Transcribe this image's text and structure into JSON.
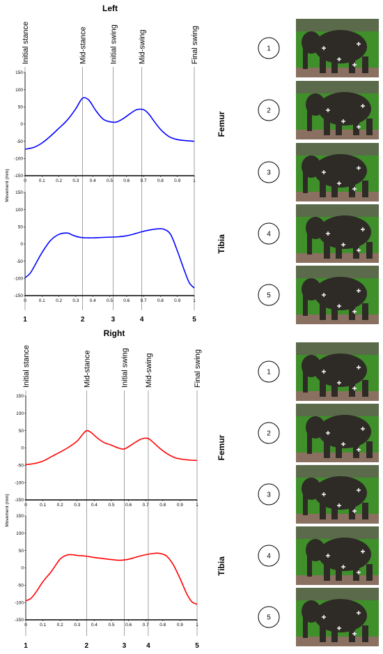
{
  "chart_data": [
    {
      "panel": "Left",
      "title": "Left",
      "phases": [
        {
          "label": "Initial stance",
          "x": 0
        },
        {
          "label": "Mid-stance",
          "x": 0.34
        },
        {
          "label": "Initial swing",
          "x": 0.52
        },
        {
          "label": "Mid-swing",
          "x": 0.69
        },
        {
          "label": "Final swing",
          "x": 1.0
        }
      ],
      "markers": [
        {
          "label": "1",
          "x": 0
        },
        {
          "label": "2",
          "x": 0.34
        },
        {
          "label": "3",
          "x": 0.52
        },
        {
          "label": "4",
          "x": 0.69
        },
        {
          "label": "5",
          "x": 1.0
        }
      ],
      "subplots": [
        {
          "type": "line",
          "name": "Femur",
          "color": "#0000ff",
          "ylabel": "",
          "xlim": [
            0,
            1
          ],
          "ylim": [
            -150,
            150
          ],
          "yticks": [
            -150,
            -100,
            -50,
            0,
            50,
            100,
            150
          ],
          "xticks": [
            "0",
            "0.1",
            "0.2",
            "0.3",
            "0.4",
            "0.5",
            "0.6",
            "0.7",
            "0.8",
            "0.9",
            "1"
          ],
          "x": [
            0,
            0.05,
            0.1,
            0.15,
            0.2,
            0.25,
            0.3,
            0.33,
            0.35,
            0.38,
            0.42,
            0.46,
            0.5,
            0.54,
            0.58,
            0.62,
            0.66,
            0.7,
            0.73,
            0.76,
            0.8,
            0.85,
            0.9,
            0.95,
            1.0
          ],
          "y": [
            -73,
            -68,
            -55,
            -35,
            -12,
            12,
            45,
            70,
            77,
            68,
            38,
            15,
            7,
            6,
            16,
            30,
            42,
            42,
            30,
            10,
            -15,
            -36,
            -45,
            -48,
            -50
          ]
        },
        {
          "type": "line",
          "name": "Tibia",
          "color": "#0000ff",
          "ylabel": "Movement (mm)",
          "xlim": [
            0,
            1
          ],
          "ylim": [
            -150,
            150
          ],
          "yticks": [
            -150,
            -100,
            -50,
            0,
            50,
            100,
            150
          ],
          "xticks": [
            "0",
            "0.1",
            "0.2",
            "0.3",
            "0.4",
            "0.5",
            "0.6",
            "0.7",
            "0.8",
            "0.9",
            "1"
          ],
          "x": [
            0,
            0.03,
            0.06,
            0.1,
            0.15,
            0.2,
            0.25,
            0.28,
            0.32,
            0.36,
            0.4,
            0.45,
            0.5,
            0.55,
            0.6,
            0.65,
            0.7,
            0.75,
            0.78,
            0.82,
            0.86,
            0.9,
            0.94,
            0.97,
            1.0
          ],
          "y": [
            -98,
            -85,
            -60,
            -25,
            10,
            28,
            32,
            26,
            20,
            18,
            18,
            19,
            20,
            21,
            24,
            30,
            37,
            42,
            44,
            43,
            28,
            -20,
            -75,
            -112,
            -128
          ]
        }
      ]
    },
    {
      "panel": "Right",
      "title": "Right",
      "phases": [
        {
          "label": "Initial stance",
          "x": 0
        },
        {
          "label": "Mid-stance",
          "x": 0.355
        },
        {
          "label": "Initial swing",
          "x": 0.575
        },
        {
          "label": "Mid-swing",
          "x": 0.715
        },
        {
          "label": "Final swing",
          "x": 1.0
        }
      ],
      "markers": [
        {
          "label": "1",
          "x": 0
        },
        {
          "label": "2",
          "x": 0.355
        },
        {
          "label": "3",
          "x": 0.575
        },
        {
          "label": "4",
          "x": 0.715
        },
        {
          "label": "5",
          "x": 1.0
        }
      ],
      "subplots": [
        {
          "type": "line",
          "name": "Femur",
          "color": "#ff0000",
          "ylabel": "",
          "xlim": [
            0,
            1
          ],
          "ylim": [
            -150,
            150
          ],
          "yticks": [
            -150,
            -100,
            -50,
            0,
            50,
            100,
            150
          ],
          "xticks": [
            "0",
            "0.1",
            "0.2",
            "0.3",
            "0.4",
            "0.5",
            "0.6",
            "0.7",
            "0.8",
            "0.9",
            "1"
          ],
          "x": [
            0,
            0.05,
            0.1,
            0.15,
            0.2,
            0.25,
            0.3,
            0.33,
            0.355,
            0.38,
            0.42,
            0.46,
            0.5,
            0.54,
            0.575,
            0.62,
            0.67,
            0.71,
            0.74,
            0.78,
            0.82,
            0.87,
            0.92,
            0.96,
            1.0
          ],
          "y": [
            -48,
            -45,
            -38,
            -25,
            -12,
            2,
            20,
            38,
            50,
            45,
            28,
            15,
            8,
            0,
            -3,
            10,
            25,
            28,
            18,
            0,
            -15,
            -28,
            -33,
            -35,
            -36
          ]
        },
        {
          "type": "line",
          "name": "Tibia",
          "color": "#ff0000",
          "ylabel": "Movement (mm)",
          "xlim": [
            0,
            1
          ],
          "ylim": [
            -150,
            150
          ],
          "yticks": [
            -150,
            -100,
            -50,
            0,
            50,
            100,
            150
          ],
          "xticks": [
            "0",
            "0.1",
            "0.2",
            "0.3",
            "0.4",
            "0.5",
            "0.6",
            "0.7",
            "0.8",
            "0.9",
            "1"
          ],
          "x": [
            0,
            0.03,
            0.06,
            0.1,
            0.15,
            0.2,
            0.24,
            0.27,
            0.3,
            0.35,
            0.4,
            0.45,
            0.5,
            0.55,
            0.6,
            0.65,
            0.7,
            0.75,
            0.78,
            0.82,
            0.86,
            0.9,
            0.94,
            0.97,
            1.0
          ],
          "y": [
            -95,
            -88,
            -70,
            -40,
            -10,
            25,
            37,
            38,
            36,
            34,
            30,
            27,
            24,
            22,
            25,
            32,
            38,
            42,
            42,
            35,
            10,
            -30,
            -75,
            -98,
            -105
          ]
        }
      ]
    }
  ],
  "photo_labels": [
    {
      "panel": "Left",
      "items": [
        "1",
        "2",
        "3",
        "4",
        "5"
      ]
    },
    {
      "panel": "Right",
      "items": [
        "1",
        "2",
        "3",
        "4",
        "5"
      ]
    }
  ],
  "colors": {
    "left_series": "#0000ff",
    "right_series": "#ff0000",
    "grass": "#3f8f2a",
    "elephant": "#2e2a26",
    "ground": "#8a7060"
  }
}
